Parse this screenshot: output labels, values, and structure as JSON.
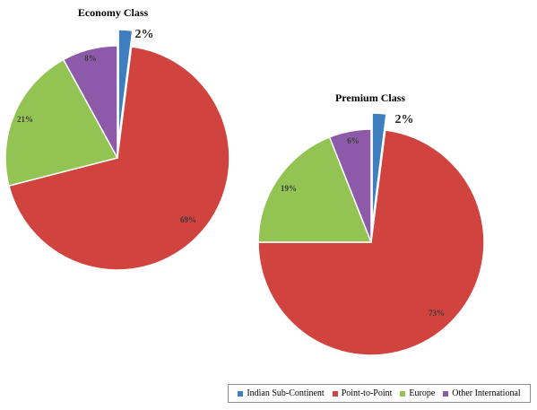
{
  "colors": {
    "Indian Sub-Continent": "#3f7fc0",
    "Point-to-Point": "#d0433f",
    "Europe": "#93c453",
    "Other International": "#8d5aa9"
  },
  "chart_data": [
    {
      "type": "pie",
      "title": "Economy Class",
      "categories": [
        "Indian Sub-Continent",
        "Point-to-Point",
        "Europe",
        "Other International"
      ],
      "values": [
        2,
        69,
        21,
        8
      ],
      "labels": [
        "2%",
        "69%",
        "21%",
        "8%"
      ],
      "exploded": [
        "Indian Sub-Continent"
      ]
    },
    {
      "type": "pie",
      "title": "Premium Class",
      "categories": [
        "Indian Sub-Continent",
        "Point-to-Point",
        "Europe",
        "Other International"
      ],
      "values": [
        2,
        73,
        19,
        6
      ],
      "labels": [
        "2%",
        "73%",
        "19%",
        "6%"
      ],
      "exploded": [
        "Indian Sub-Continent"
      ]
    }
  ],
  "legend": {
    "position": "bottom-right",
    "items": [
      "Indian Sub-Continent",
      "Point-to-Point",
      "Europe",
      "Other International"
    ]
  }
}
